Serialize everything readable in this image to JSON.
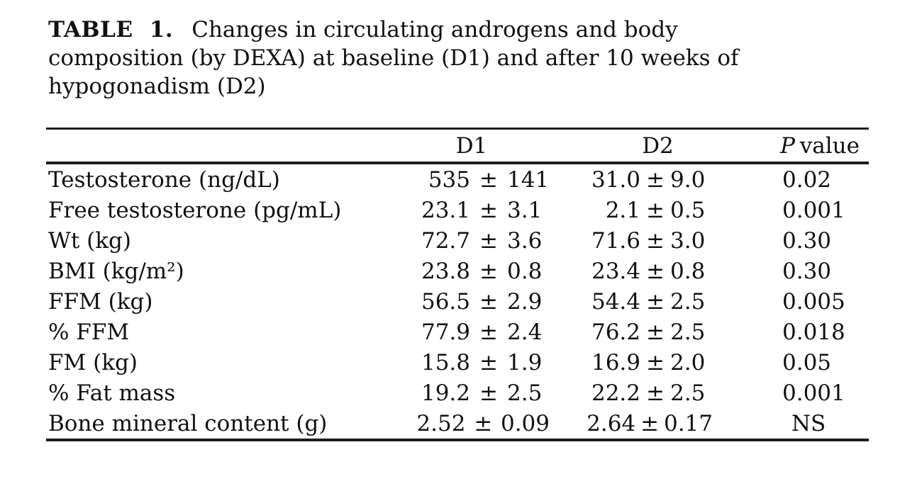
{
  "page": {
    "background_color": "#ffffff",
    "text_color": "#111111",
    "rule_color": "#1c1c1c"
  },
  "caption": {
    "label": "TABLE 1.",
    "lines": [
      "Changes in circulating androgens and body",
      "composition (by DEXA) at baseline (D1) and after 10 weeks of",
      "hypogonadism (D2)"
    ]
  },
  "table": {
    "pm": "±",
    "columns": {
      "d1": "D1",
      "d2": "D2",
      "p_italic": "P",
      "p_rest": "value"
    },
    "rows": [
      {
        "label": "Testosterone (ng/dL)",
        "d1": {
          "mean": "535",
          "sd": "141"
        },
        "d2": {
          "mean": "31.0",
          "sd": "9.0"
        },
        "p": "0.02"
      },
      {
        "label": "Free testosterone (pg/mL)",
        "d1": {
          "mean": "23.1",
          "sd": "3.1"
        },
        "d2": {
          "mean": "2.1",
          "sd": "0.5"
        },
        "p": "0.001"
      },
      {
        "label": "Wt (kg)",
        "d1": {
          "mean": "72.7",
          "sd": "3.6"
        },
        "d2": {
          "mean": "71.6",
          "sd": "3.0"
        },
        "p": "0.30"
      },
      {
        "label": "BMI (kg/m²)",
        "d1": {
          "mean": "23.8",
          "sd": "0.8"
        },
        "d2": {
          "mean": "23.4",
          "sd": "0.8"
        },
        "p": "0.30"
      },
      {
        "label": "FFM (kg)",
        "d1": {
          "mean": "56.5",
          "sd": "2.9"
        },
        "d2": {
          "mean": "54.4",
          "sd": "2.5"
        },
        "p": "0.005"
      },
      {
        "label": "% FFM",
        "d1": {
          "mean": "77.9",
          "sd": "2.4"
        },
        "d2": {
          "mean": "76.2",
          "sd": "2.5"
        },
        "p": "0.018"
      },
      {
        "label": "FM (kg)",
        "d1": {
          "mean": "15.8",
          "sd": "1.9"
        },
        "d2": {
          "mean": "16.9",
          "sd": "2.0"
        },
        "p": "0.05"
      },
      {
        "label": "% Fat mass",
        "d1": {
          "mean": "19.2",
          "sd": "2.5"
        },
        "d2": {
          "mean": "22.2",
          "sd": "2.5"
        },
        "p": "0.001"
      },
      {
        "label": "Bone mineral content (g)",
        "d1": {
          "mean": "2.52",
          "sd": "0.09"
        },
        "d2": {
          "mean": "2.64",
          "sd": "0.17"
        },
        "p": "NS"
      }
    ]
  }
}
